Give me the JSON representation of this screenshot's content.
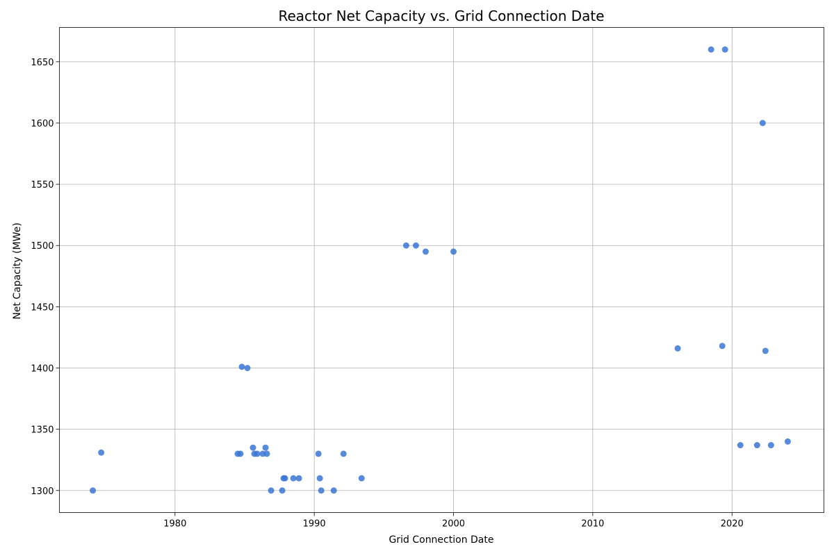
{
  "chart_data": {
    "type": "scatter",
    "title": "Reactor Net Capacity vs. Grid Connection Date",
    "xlabel": "Grid Connection Date",
    "ylabel": "Net Capacity (MWe)",
    "x_ticks": [
      1980,
      1990,
      2000,
      2010,
      2020
    ],
    "y_ticks": [
      1300,
      1350,
      1400,
      1450,
      1500,
      1550,
      1600,
      1650
    ],
    "xlim": [
      1971.7,
      2026.6
    ],
    "ylim": [
      1282,
      1678
    ],
    "grid": true,
    "point_color": "#3a75d4",
    "points": [
      {
        "x": 1974.1,
        "y": 1300
      },
      {
        "x": 1974.7,
        "y": 1331
      },
      {
        "x": 1984.5,
        "y": 1330
      },
      {
        "x": 1984.7,
        "y": 1330
      },
      {
        "x": 1984.8,
        "y": 1401
      },
      {
        "x": 1985.2,
        "y": 1400
      },
      {
        "x": 1985.6,
        "y": 1335
      },
      {
        "x": 1985.7,
        "y": 1330
      },
      {
        "x": 1985.9,
        "y": 1330
      },
      {
        "x": 1986.3,
        "y": 1330
      },
      {
        "x": 1986.5,
        "y": 1335
      },
      {
        "x": 1986.6,
        "y": 1330
      },
      {
        "x": 1986.9,
        "y": 1300
      },
      {
        "x": 1987.7,
        "y": 1300
      },
      {
        "x": 1987.8,
        "y": 1310
      },
      {
        "x": 1987.9,
        "y": 1310
      },
      {
        "x": 1988.5,
        "y": 1310
      },
      {
        "x": 1988.9,
        "y": 1310
      },
      {
        "x": 1990.3,
        "y": 1330
      },
      {
        "x": 1990.4,
        "y": 1310
      },
      {
        "x": 1990.5,
        "y": 1300
      },
      {
        "x": 1991.4,
        "y": 1300
      },
      {
        "x": 1992.1,
        "y": 1330
      },
      {
        "x": 1993.4,
        "y": 1310
      },
      {
        "x": 1996.6,
        "y": 1500
      },
      {
        "x": 1997.3,
        "y": 1500
      },
      {
        "x": 1998.0,
        "y": 1495
      },
      {
        "x": 2000.0,
        "y": 1495
      },
      {
        "x": 2016.1,
        "y": 1416
      },
      {
        "x": 2018.5,
        "y": 1660
      },
      {
        "x": 2019.3,
        "y": 1418
      },
      {
        "x": 2019.5,
        "y": 1660
      },
      {
        "x": 2020.6,
        "y": 1337
      },
      {
        "x": 2021.8,
        "y": 1337
      },
      {
        "x": 2022.2,
        "y": 1600
      },
      {
        "x": 2022.4,
        "y": 1414
      },
      {
        "x": 2022.8,
        "y": 1337
      },
      {
        "x": 2024.0,
        "y": 1340
      }
    ]
  }
}
